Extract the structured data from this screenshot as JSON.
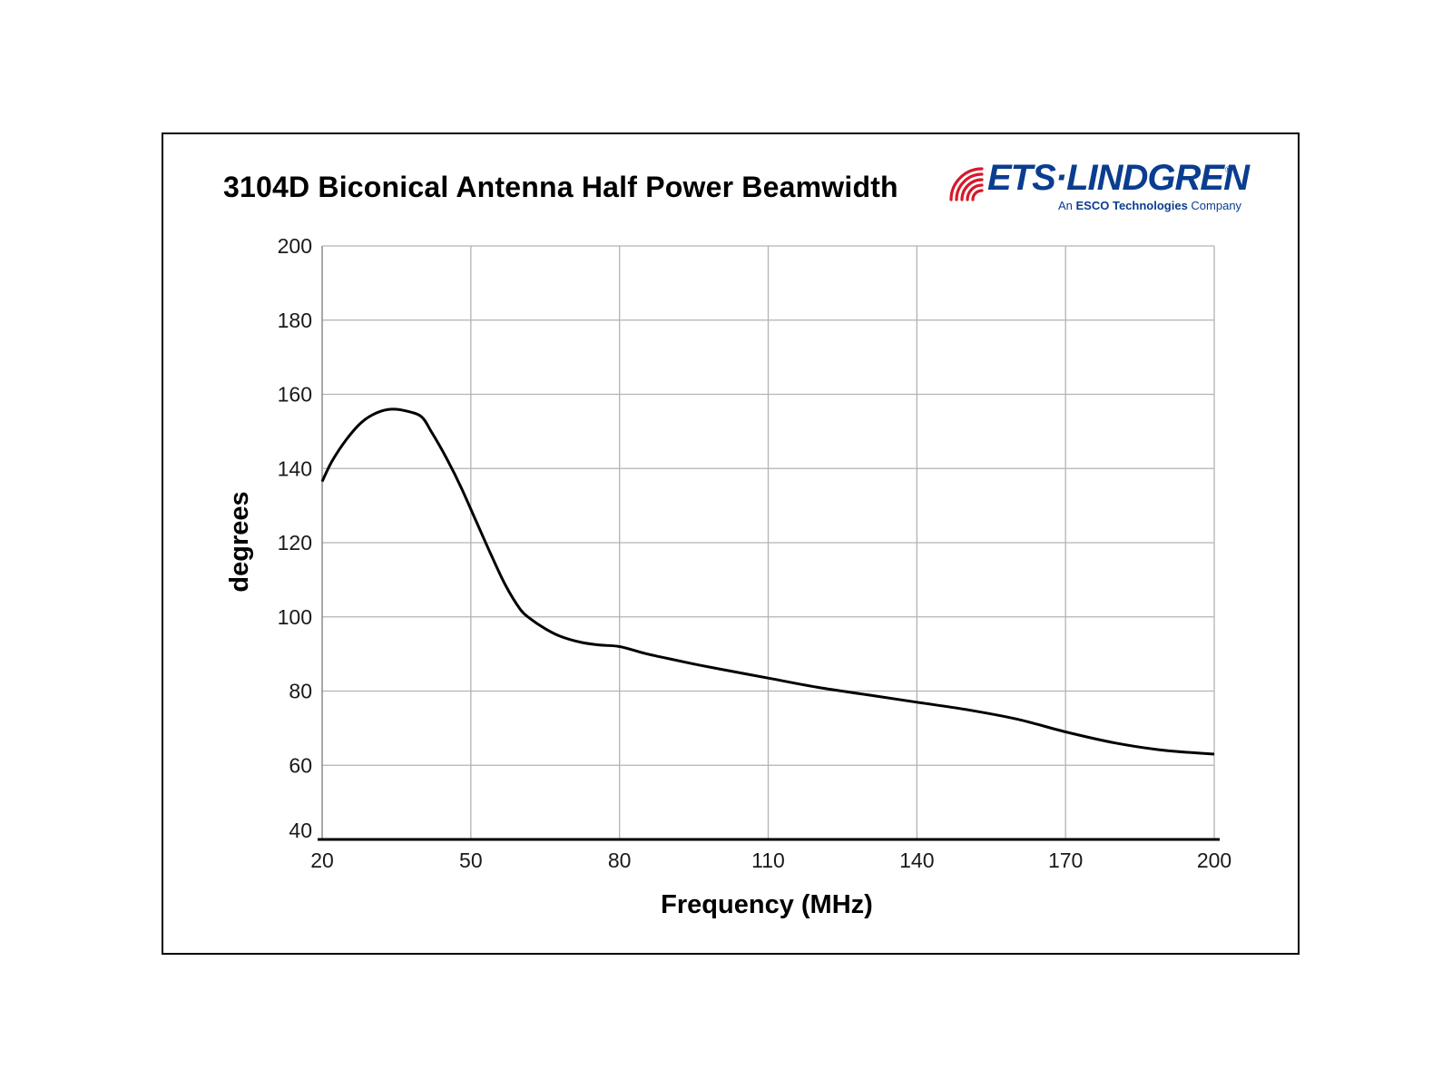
{
  "logo": {
    "name": "ETS·LINDGREN",
    "tagline_prefix": "An ",
    "tagline_bold": "ESCO Technologies",
    "tagline_suffix": " Company",
    "reg": "®",
    "colors": {
      "red": "#d7182a",
      "blue": "#0a3d8f"
    }
  },
  "chart_data": {
    "type": "line",
    "title": "3104D Biconical Antenna Half Power Beamwidth",
    "xlabel": "Frequency (MHz)",
    "ylabel": "degrees",
    "xlim": [
      20,
      200
    ],
    "ylim": [
      40,
      200
    ],
    "xticks": [
      20,
      50,
      80,
      110,
      140,
      170,
      200
    ],
    "yticks": [
      40,
      60,
      80,
      100,
      120,
      140,
      160,
      180,
      200
    ],
    "grid": true,
    "line_color": "#000000",
    "series": [
      {
        "x": [
          20,
          22,
          25,
          28,
          31,
          34,
          37,
          40,
          42,
          45,
          48,
          51,
          54,
          57,
          60,
          62,
          65,
          68,
          72,
          76,
          80,
          85,
          90,
          95,
          100,
          110,
          120,
          130,
          140,
          150,
          160,
          170,
          180,
          190,
          200
        ],
        "values": [
          136.5,
          142,
          148,
          152.5,
          155,
          156,
          155.5,
          154,
          150,
          143,
          135,
          126,
          117,
          108.5,
          102,
          99.5,
          96.8,
          94.8,
          93.2,
          92.4,
          92,
          90.2,
          88.7,
          87.3,
          86,
          83.5,
          81,
          79,
          77,
          75,
          72.5,
          69,
          66,
          64,
          63
        ]
      }
    ]
  }
}
